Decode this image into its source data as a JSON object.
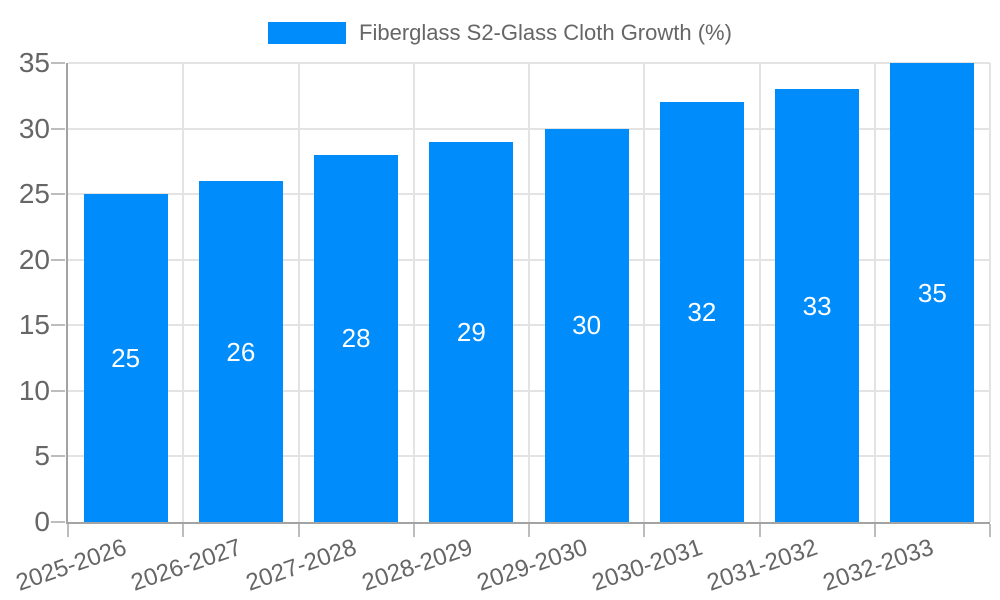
{
  "chart_data": {
    "type": "bar",
    "title": "Fiberglass S2-Glass Cloth Growth (%)",
    "categories": [
      "2025-2026",
      "2026-2027",
      "2027-2028",
      "2028-2029",
      "2029-2030",
      "2030-2031",
      "2031-2032",
      "2032-2033"
    ],
    "values": [
      25,
      26,
      28,
      29,
      30,
      32,
      33,
      35
    ],
    "series": [
      {
        "name": "Fiberglass S2-Glass Cloth Growth (%)",
        "values": [
          25,
          26,
          28,
          29,
          30,
          32,
          33,
          35
        ]
      }
    ],
    "yticks": [
      0,
      5,
      10,
      15,
      20,
      25,
      30,
      35
    ],
    "ylim": [
      0,
      35
    ],
    "xlabel": "",
    "ylabel": "",
    "grid": true,
    "legend_position": "top",
    "data_labels": "inside-center",
    "colors": {
      "bar": "#008cfa",
      "bar_label": "#ffffff",
      "grid": "#e3e3e3",
      "tick_mark": "#bdbdbd",
      "axis": "#a3a3a3",
      "text": "#666666"
    }
  }
}
